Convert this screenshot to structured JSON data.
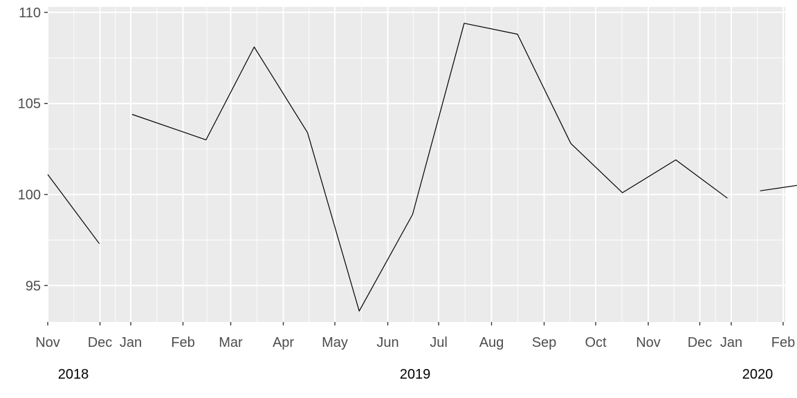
{
  "chart_data": {
    "type": "line",
    "xlabel": "",
    "ylabel": "",
    "ylim": [
      93,
      110.3
    ],
    "yticks": [
      95,
      100,
      105,
      110
    ],
    "grid": true,
    "x_month_ticks": [
      "Nov",
      "Dec",
      "Jan",
      "Feb",
      "Mar",
      "Apr",
      "May",
      "Jun",
      "Jul",
      "Aug",
      "Sep",
      "Oct",
      "Nov",
      "Dec",
      "Jan",
      "Feb"
    ],
    "x_year_labels": [
      "2018",
      "2019",
      "2020"
    ],
    "segments": [
      {
        "points": [
          {
            "x": "2018-11-01",
            "y": 101.1
          },
          {
            "x": "2018-12-01",
            "y": 97.3
          }
        ]
      },
      {
        "points": [
          {
            "x": "2018-12-20",
            "y": 104.4
          },
          {
            "x": "2019-02-01",
            "y": 103.0
          },
          {
            "x": "2019-03-01",
            "y": 108.1
          },
          {
            "x": "2019-04-01",
            "y": 103.4
          },
          {
            "x": "2019-05-01",
            "y": 93.6
          },
          {
            "x": "2019-06-01",
            "y": 98.9
          },
          {
            "x": "2019-07-01",
            "y": 109.4
          },
          {
            "x": "2019-08-01",
            "y": 108.8
          },
          {
            "x": "2019-09-01",
            "y": 102.8
          },
          {
            "x": "2019-10-01",
            "y": 100.1
          },
          {
            "x": "2019-11-01",
            "y": 101.9
          },
          {
            "x": "2019-12-01",
            "y": 99.8
          }
        ]
      },
      {
        "points": [
          {
            "x": "2019-12-20",
            "y": 100.2
          },
          {
            "x": "2020-02-01",
            "y": 100.8
          }
        ]
      }
    ]
  }
}
